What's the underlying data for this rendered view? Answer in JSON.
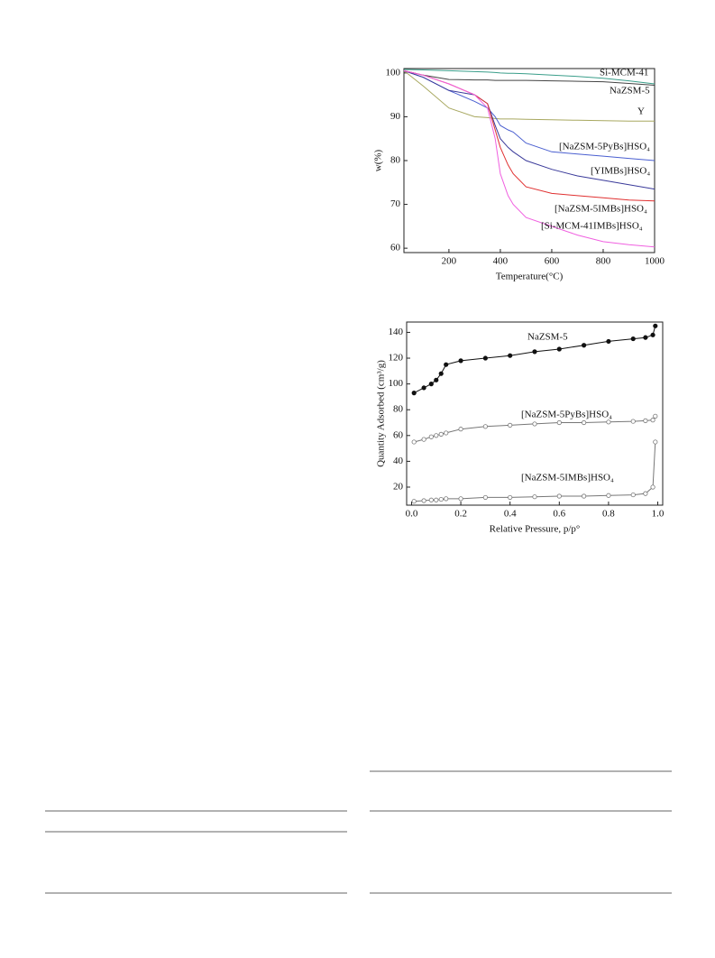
{
  "chart_data": [
    {
      "type": "line",
      "x_label": "Temperature(°C)",
      "y_label": "w(%)",
      "x": [
        25,
        100,
        200,
        300,
        350,
        380,
        400,
        430,
        450,
        500,
        600,
        700,
        800,
        900,
        1000
      ],
      "xlim": [
        25,
        1000
      ],
      "ylim": [
        59,
        101
      ],
      "xticks": [
        200,
        400,
        600,
        800,
        1000
      ],
      "yticks": [
        60,
        70,
        80,
        90,
        100
      ],
      "grid": false,
      "series": [
        {
          "name": "Si-MCM-41",
          "color": "#3a9e8a",
          "values": [
            100.8,
            100.7,
            100.5,
            100.3,
            100.2,
            100.1,
            100,
            99.9,
            99.9,
            99.8,
            99.5,
            99.2,
            98.8,
            98.2,
            97.5
          ]
        },
        {
          "name": "NaZSM-5",
          "color": "#444444",
          "values": [
            100.5,
            99.5,
            98.5,
            98.4,
            98.4,
            98.3,
            98.3,
            98.3,
            98.3,
            98.3,
            98.2,
            98.1,
            98,
            97.6,
            97.2
          ]
        },
        {
          "name": "Y",
          "color": "#a8a860",
          "values": [
            100.5,
            97,
            92,
            90,
            89.8,
            89.6,
            89.5,
            89.5,
            89.5,
            89.4,
            89.3,
            89.2,
            89.1,
            89,
            89
          ]
        },
        {
          "name": "[NaZSM-5PyBs]HSO₄",
          "color": "#4a5fd0",
          "values": [
            100.5,
            99,
            96,
            93.5,
            92,
            90,
            88,
            87,
            86.5,
            84,
            82,
            81.5,
            81,
            80.5,
            80
          ]
        },
        {
          "name": "[YIMBs]HSO₄",
          "color": "#3a3a9a",
          "values": [
            100.5,
            99,
            96,
            95,
            93,
            88,
            85,
            83,
            82,
            80,
            78,
            76.5,
            75.5,
            74.5,
            73.5
          ]
        },
        {
          "name": "[NaZSM-5IMBs]HSO₄",
          "color": "#e03030",
          "values": [
            100.5,
            99.5,
            97.5,
            95,
            93,
            87,
            83,
            79,
            77,
            74,
            72.5,
            72,
            71.5,
            71,
            70.8
          ]
        },
        {
          "name": "[Si-MCM-41IMBs]HSO₄",
          "color": "#f060e0",
          "values": [
            100.5,
            99.5,
            97.5,
            95,
            92,
            85,
            77,
            72,
            70,
            67,
            65,
            63,
            61.5,
            60.8,
            60.3
          ]
        }
      ]
    },
    {
      "type": "line",
      "x_label": "Relative Pressure, p/p°",
      "y_label": "Quantity Adsorbed (cm³/g)",
      "x": [
        0.01,
        0.05,
        0.08,
        0.1,
        0.12,
        0.14,
        0.2,
        0.3,
        0.4,
        0.5,
        0.6,
        0.7,
        0.8,
        0.9,
        0.95,
        0.98,
        0.99
      ],
      "xlim": [
        -0.02,
        1.02
      ],
      "ylim": [
        6,
        148
      ],
      "xticks": [
        {
          "value": 0,
          "label": "0.0"
        },
        0.2,
        0.4,
        0.6,
        0.8,
        {
          "value": 1,
          "label": "1.0"
        }
      ],
      "yticks": [
        20,
        40,
        60,
        80,
        100,
        120,
        140
      ],
      "grid": false,
      "series": [
        {
          "name": "NaZSM-5",
          "color": "#111111",
          "marker": "filled",
          "values": [
            93,
            97,
            100,
            103,
            108,
            115,
            118,
            120,
            122,
            125,
            127,
            130,
            133,
            135,
            136,
            138,
            145
          ]
        },
        {
          "name": "[NaZSM-5PyBs]HSO₄",
          "color": "#777777",
          "marker": "open",
          "values": [
            55,
            57,
            59,
            60,
            61,
            62,
            65,
            67,
            68,
            69,
            70,
            70,
            70.5,
            71,
            71.5,
            72,
            75
          ]
        },
        {
          "name": "[NaZSM-5IMBs]HSO₄",
          "color": "#777777",
          "marker": "open",
          "values": [
            9,
            9.5,
            10,
            10,
            10.5,
            11,
            11,
            12,
            12,
            12.5,
            13,
            13,
            13.5,
            14,
            15,
            20,
            55
          ]
        }
      ]
    }
  ]
}
